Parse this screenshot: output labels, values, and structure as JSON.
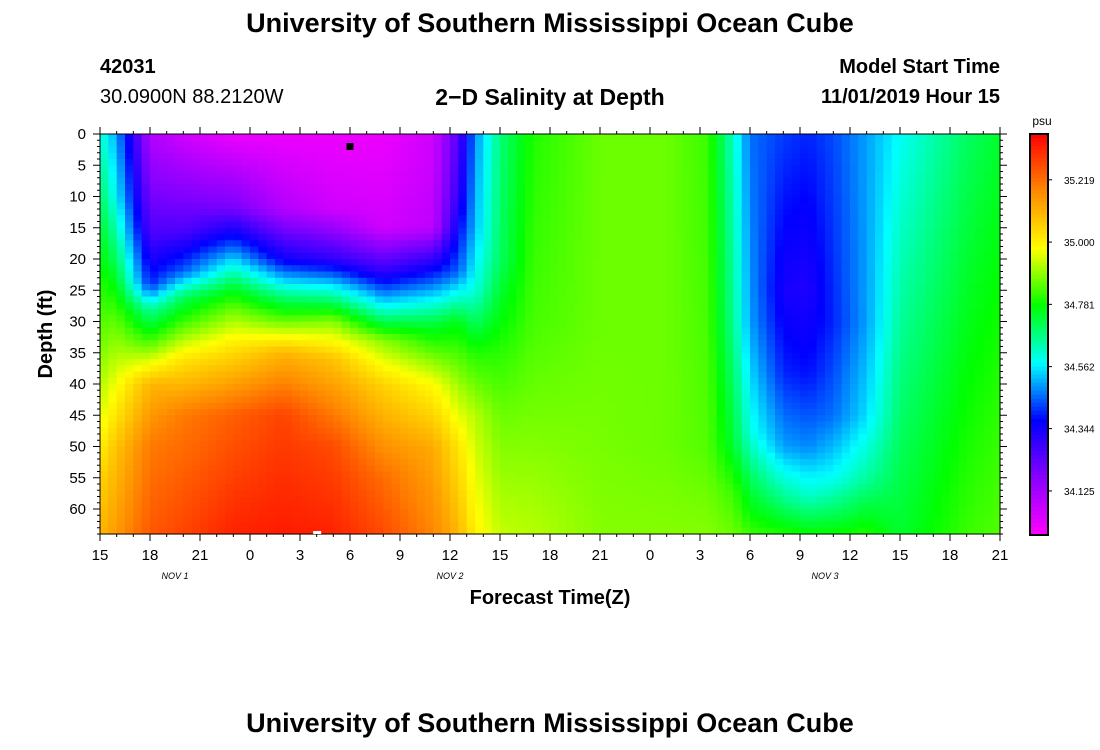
{
  "header": {
    "title_top": "University of Southern Mississippi Ocean Cube",
    "title_bottom": "University of Southern Mississippi Ocean Cube",
    "station_id": "42031",
    "station_coords": "30.0900N 88.2120W",
    "plot_title": "2−D Salinity at Depth",
    "model_start_label": "Model Start Time",
    "model_start_value": "11/01/2019 Hour 15"
  },
  "chart_data": {
    "type": "heatmap",
    "title": "2−D Salinity at Depth",
    "xlabel": "Forecast Time(Z)",
    "ylabel": "Depth (ft)",
    "x_start_hour": 0,
    "x_end_hour": 54,
    "x_tick_labels": [
      "15",
      "18",
      "21",
      "0",
      "3",
      "6",
      "9",
      "12",
      "15",
      "18",
      "21",
      "0",
      "3",
      "6",
      "9",
      "12",
      "15",
      "18",
      "21"
    ],
    "date_labels": [
      {
        "text": "NOV 1",
        "hour": 4.5
      },
      {
        "text": "NOV 2",
        "hour": 21
      },
      {
        "text": "NOV 3",
        "hour": 43.5
      }
    ],
    "ylim": [
      0,
      64
    ],
    "y_ticks": [
      0,
      5,
      10,
      15,
      20,
      25,
      30,
      35,
      40,
      45,
      50,
      55,
      60
    ],
    "colorbar": {
      "unit": "psu",
      "min": 33.97,
      "max": 35.38,
      "tick_labels": [
        "35.219",
        "35.000",
        "34.781",
        "34.562",
        "34.344",
        "34.125"
      ],
      "tick_values": [
        35.219,
        35.0,
        34.781,
        34.562,
        34.344,
        34.125
      ],
      "colors": [
        "#ff00ff",
        "#8800ff",
        "#0000ff",
        "#00ffff",
        "#00ff00",
        "#ffff00",
        "#ff8800",
        "#ff0000"
      ]
    },
    "grid": false,
    "salinity_columns": [
      {
        "hour": 0,
        "d": [
          0,
          15,
          30,
          45,
          55,
          64
        ],
        "s": [
          34.62,
          34.74,
          34.84,
          34.95,
          35.05,
          35.1
        ]
      },
      {
        "hour": 1,
        "d": [
          0,
          10,
          20,
          30,
          40,
          50,
          64
        ],
        "s": [
          34.5,
          34.57,
          34.7,
          34.85,
          34.97,
          35.08,
          35.15
        ]
      },
      {
        "hour": 3,
        "d": [
          0,
          15,
          24,
          28,
          33,
          40,
          50,
          64
        ],
        "s": [
          34.1,
          34.25,
          34.4,
          34.65,
          34.82,
          35.1,
          35.2,
          35.25
        ]
      },
      {
        "hour": 5,
        "d": [
          0,
          15,
          22,
          26,
          30,
          36,
          45,
          64
        ],
        "s": [
          34.05,
          34.25,
          34.45,
          34.7,
          34.82,
          35.02,
          35.2,
          35.28
        ]
      },
      {
        "hour": 8,
        "d": [
          0,
          12,
          18,
          24,
          28,
          34,
          45,
          64
        ],
        "s": [
          34.0,
          34.2,
          34.45,
          34.72,
          34.86,
          35.02,
          35.24,
          35.33
        ]
      },
      {
        "hour": 11,
        "d": [
          0,
          12,
          20,
          26,
          30,
          35,
          45,
          64
        ],
        "s": [
          34.0,
          34.1,
          34.35,
          34.68,
          34.86,
          35.1,
          35.28,
          35.34
        ]
      },
      {
        "hour": 14,
        "d": [
          0,
          12,
          20,
          25,
          30,
          36,
          50,
          64
        ],
        "s": [
          34.0,
          34.05,
          34.3,
          34.6,
          34.88,
          35.08,
          35.27,
          35.33
        ]
      },
      {
        "hour": 17,
        "d": [
          0,
          15,
          22,
          28,
          33,
          40,
          55,
          64
        ],
        "s": [
          34.0,
          34.05,
          34.3,
          34.6,
          34.88,
          35.05,
          35.22,
          35.27
        ]
      },
      {
        "hour": 20,
        "d": [
          0,
          15,
          22,
          30,
          40,
          50,
          64
        ],
        "s": [
          34.05,
          34.08,
          34.38,
          34.72,
          34.98,
          35.12,
          35.18
        ]
      },
      {
        "hour": 21.5,
        "d": [
          0,
          10,
          22,
          30,
          40,
          50,
          64
        ],
        "s": [
          34.25,
          34.3,
          34.45,
          34.76,
          34.9,
          35.02,
          35.1
        ]
      },
      {
        "hour": 22.5,
        "d": [
          0,
          15,
          25,
          35,
          45,
          64
        ],
        "s": [
          34.48,
          34.52,
          34.6,
          34.8,
          34.92,
          35.0
        ]
      },
      {
        "hour": 24,
        "d": [
          0,
          20,
          34,
          45,
          64
        ],
        "s": [
          34.68,
          34.7,
          34.8,
          34.86,
          34.93
        ]
      },
      {
        "hour": 26,
        "d": [
          0,
          30,
          50,
          64
        ],
        "s": [
          34.8,
          34.83,
          34.88,
          34.92
        ]
      },
      {
        "hour": 30,
        "d": [
          0,
          30,
          50,
          64
        ],
        "s": [
          34.86,
          34.86,
          34.87,
          34.88
        ]
      },
      {
        "hour": 34,
        "d": [
          0,
          30,
          50,
          64
        ],
        "s": [
          34.86,
          34.86,
          34.86,
          34.88
        ]
      },
      {
        "hour": 36.5,
        "d": [
          0,
          30,
          50,
          64
        ],
        "s": [
          34.82,
          34.83,
          34.84,
          34.88
        ]
      },
      {
        "hour": 38,
        "d": [
          0,
          30,
          50,
          57,
          64
        ],
        "s": [
          34.62,
          34.66,
          34.74,
          34.82,
          34.86
        ]
      },
      {
        "hour": 39,
        "d": [
          0,
          30,
          48,
          56,
          64
        ],
        "s": [
          34.46,
          34.5,
          34.6,
          34.72,
          34.82
        ]
      },
      {
        "hour": 41,
        "d": [
          0,
          25,
          38,
          50,
          58,
          64
        ],
        "s": [
          34.42,
          34.34,
          34.4,
          34.5,
          34.66,
          34.8
        ]
      },
      {
        "hour": 42.5,
        "d": [
          0,
          25,
          38,
          50,
          58,
          64
        ],
        "s": [
          34.4,
          34.33,
          34.38,
          34.48,
          34.62,
          34.78
        ]
      },
      {
        "hour": 44,
        "d": [
          0,
          30,
          45,
          55,
          64
        ],
        "s": [
          34.43,
          34.4,
          34.46,
          34.58,
          34.78
        ]
      },
      {
        "hour": 46,
        "d": [
          0,
          30,
          45,
          55,
          64
        ],
        "s": [
          34.5,
          34.5,
          34.55,
          34.65,
          34.8
        ]
      },
      {
        "hour": 48,
        "d": [
          0,
          64
        ],
        "s": [
          34.58,
          34.74
        ]
      },
      {
        "hour": 50,
        "d": [
          0,
          64
        ],
        "s": [
          34.64,
          34.78
        ]
      },
      {
        "hour": 52,
        "d": [
          0,
          64
        ],
        "s": [
          34.7,
          34.82
        ]
      },
      {
        "hour": 54,
        "d": [
          0,
          64
        ],
        "s": [
          34.74,
          34.84
        ]
      }
    ],
    "markers": [
      {
        "name": "top-marker",
        "hour": 15,
        "depth": 2,
        "color": "#000000"
      },
      {
        "name": "bottom-marker",
        "hour": 13,
        "depth": 64,
        "color": "#ffffff"
      }
    ]
  }
}
